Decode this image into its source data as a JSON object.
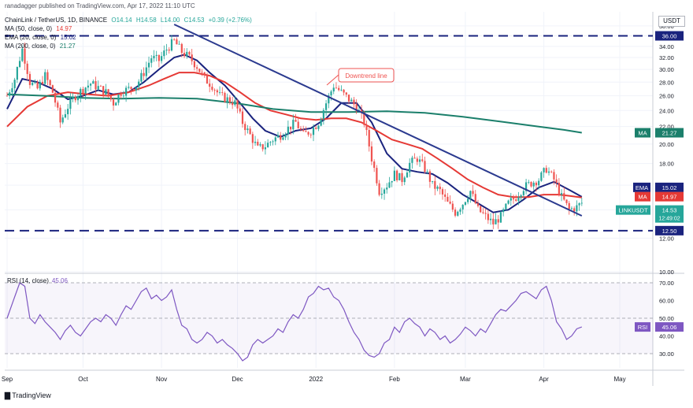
{
  "header": {
    "publisher": "ranadagger published on TradingView.com, Apr 17, 2022 11:10 UTC",
    "symbol": "ChainLink / TetherUS, 1D, BINANCE",
    "open": "O14.14",
    "high": "H14.58",
    "low": "L14.00",
    "close": "C14.53",
    "change": "+0.39 (+2.76%)",
    "currency": "USDT",
    "indicators": [
      {
        "label": "MA (50, close, 0)",
        "value": "14.97",
        "color": "#e53935"
      },
      {
        "label": "EMA (20, close, 0)",
        "value": "15.02",
        "color": "#1a237e"
      },
      {
        "label": "MA (200, close, 0)",
        "value": "21.27",
        "color": "#1b7f6b"
      }
    ]
  },
  "footer": {
    "brand": "TradingView"
  },
  "annotation": {
    "text": "Downtrend line"
  },
  "colors": {
    "up": "#26a69a",
    "down": "#ef5350",
    "ema20": "#1a237e",
    "ma50": "#e53935",
    "ma200": "#1b7f6b",
    "rsi": "#7e57c2",
    "levels": "#1a237e",
    "trend": "#2b3a8f"
  },
  "chart_data": {
    "type": "candlestick",
    "price_axis": {
      "ylim": [
        10,
        39.3
      ],
      "ticks": [
        "38.00",
        "36.00",
        "34.00",
        "32.00",
        "30.00",
        "28.00",
        "26.00",
        "24.00",
        "22.00",
        "20.00",
        "18.00",
        "16.00",
        "14.00",
        "12.00",
        "10.00"
      ],
      "tick_values": [
        38,
        36,
        34,
        32,
        30,
        28,
        26,
        24,
        22,
        20,
        18,
        16,
        14,
        12,
        10
      ],
      "scale": "log"
    },
    "horizontal_levels": [
      {
        "value": 36.0,
        "label": "36.00"
      },
      {
        "value": 12.5,
        "label": "12.50"
      }
    ],
    "trendline": {
      "from": {
        "day": 66,
        "price": 38.3
      },
      "to": {
        "day": 227,
        "price": 13.55
      },
      "label": "Downtrend line"
    },
    "price_labels": [
      {
        "label": "MA",
        "value": 21.27,
        "text": "21.27"
      },
      {
        "label": "EMA",
        "value": 15.02,
        "text": "15.02"
      },
      {
        "label": "MA",
        "value": 14.97,
        "text": "14.97"
      },
      {
        "label": "LINKUSDT",
        "value": 14.53,
        "text": "14.53",
        "countdown": "12:49:02"
      }
    ],
    "x_axis": {
      "ticks": [
        {
          "label": "Sep",
          "day": 0
        },
        {
          "label": "Oct",
          "day": 30
        },
        {
          "label": "Nov",
          "day": 61
        },
        {
          "label": "Dec",
          "day": 91
        },
        {
          "label": "2022",
          "day": 122
        },
        {
          "label": "Feb",
          "day": 153
        },
        {
          "label": "Mar",
          "day": 181
        },
        {
          "label": "Apr",
          "day": 212
        },
        {
          "label": "May",
          "day": 242
        }
      ],
      "first_day": "2021-09-01",
      "last_day": "2022-04-17"
    },
    "close_anchors": [
      [
        0,
        26.0
      ],
      [
        3,
        28.5
      ],
      [
        6,
        33.5
      ],
      [
        9,
        28.0
      ],
      [
        12,
        27.0
      ],
      [
        15,
        29.0
      ],
      [
        18,
        26.5
      ],
      [
        21,
        22.5
      ],
      [
        24,
        24.5
      ],
      [
        27,
        26.0
      ],
      [
        30,
        27.0
      ],
      [
        33,
        27.8
      ],
      [
        36,
        27.2
      ],
      [
        39,
        26.5
      ],
      [
        42,
        25.0
      ],
      [
        45,
        26.5
      ],
      [
        48,
        27.0
      ],
      [
        51,
        27.5
      ],
      [
        54,
        29.5
      ],
      [
        57,
        32.0
      ],
      [
        60,
        31.5
      ],
      [
        63,
        33.5
      ],
      [
        66,
        35.0
      ],
      [
        69,
        33.0
      ],
      [
        72,
        32.0
      ],
      [
        75,
        30.5
      ],
      [
        78,
        28.5
      ],
      [
        81,
        27.5
      ],
      [
        84,
        26.0
      ],
      [
        87,
        25.5
      ],
      [
        90,
        25.0
      ],
      [
        93,
        22.5
      ],
      [
        96,
        21.0
      ],
      [
        99,
        19.5
      ],
      [
        102,
        19.8
      ],
      [
        105,
        20.5
      ],
      [
        108,
        21.0
      ],
      [
        111,
        21.8
      ],
      [
        114,
        22.5
      ],
      [
        117,
        21.0
      ],
      [
        120,
        21.5
      ],
      [
        123,
        22.5
      ],
      [
        126,
        25.0
      ],
      [
        129,
        27.5
      ],
      [
        132,
        26.5
      ],
      [
        135,
        25.5
      ],
      [
        138,
        24.5
      ],
      [
        141,
        22.5
      ],
      [
        144,
        18.5
      ],
      [
        147,
        15.5
      ],
      [
        150,
        16.0
      ],
      [
        153,
        17.0
      ],
      [
        156,
        16.5
      ],
      [
        159,
        18.0
      ],
      [
        162,
        18.5
      ],
      [
        165,
        17.5
      ],
      [
        168,
        16.0
      ],
      [
        171,
        15.5
      ],
      [
        174,
        14.5
      ],
      [
        177,
        13.8
      ],
      [
        180,
        14.5
      ],
      [
        183,
        15.5
      ],
      [
        186,
        14.0
      ],
      [
        189,
        13.5
      ],
      [
        192,
        13.0
      ],
      [
        195,
        13.5
      ],
      [
        198,
        14.5
      ],
      [
        201,
        15.0
      ],
      [
        204,
        15.8
      ],
      [
        207,
        16.2
      ],
      [
        210,
        16.5
      ],
      [
        213,
        17.5
      ],
      [
        216,
        16.5
      ],
      [
        219,
        15.0
      ],
      [
        222,
        14.0
      ],
      [
        225,
        14.2
      ],
      [
        227,
        14.53
      ]
    ],
    "moving_averages": [
      {
        "name": "EMA 20",
        "color": "#1a237e",
        "points": [
          [
            0,
            24.2
          ],
          [
            6,
            28.5
          ],
          [
            12,
            28.0
          ],
          [
            18,
            27.0
          ],
          [
            24,
            25.5
          ],
          [
            30,
            26.0
          ],
          [
            36,
            26.8
          ],
          [
            42,
            26.2
          ],
          [
            48,
            26.5
          ],
          [
            54,
            28.0
          ],
          [
            60,
            30.0
          ],
          [
            66,
            32.0
          ],
          [
            70,
            32.5
          ],
          [
            75,
            31.5
          ],
          [
            80,
            29.5
          ],
          [
            86,
            27.5
          ],
          [
            92,
            25.0
          ],
          [
            97,
            23.0
          ],
          [
            102,
            21.5
          ],
          [
            108,
            20.8
          ],
          [
            114,
            21.5
          ],
          [
            120,
            21.8
          ],
          [
            126,
            23.0
          ],
          [
            132,
            25.0
          ],
          [
            138,
            25.0
          ],
          [
            144,
            22.5
          ],
          [
            150,
            19.0
          ],
          [
            156,
            17.5
          ],
          [
            162,
            17.2
          ],
          [
            168,
            17.0
          ],
          [
            174,
            16.2
          ],
          [
            180,
            15.2
          ],
          [
            186,
            14.5
          ],
          [
            192,
            13.8
          ],
          [
            198,
            14.0
          ],
          [
            204,
            14.8
          ],
          [
            210,
            15.8
          ],
          [
            216,
            16.3
          ],
          [
            222,
            15.6
          ],
          [
            227,
            15.02
          ]
        ]
      },
      {
        "name": "MA 50",
        "color": "#e53935",
        "points": [
          [
            0,
            22.0
          ],
          [
            8,
            24.5
          ],
          [
            16,
            26.0
          ],
          [
            24,
            26.5
          ],
          [
            32,
            26.2
          ],
          [
            40,
            26.0
          ],
          [
            48,
            26.5
          ],
          [
            56,
            27.5
          ],
          [
            62,
            28.5
          ],
          [
            68,
            29.5
          ],
          [
            74,
            29.5
          ],
          [
            80,
            29.0
          ],
          [
            86,
            28.0
          ],
          [
            92,
            26.5
          ],
          [
            98,
            25.0
          ],
          [
            104,
            24.0
          ],
          [
            110,
            23.5
          ],
          [
            116,
            23.0
          ],
          [
            122,
            22.8
          ],
          [
            128,
            23.0
          ],
          [
            134,
            23.0
          ],
          [
            140,
            22.5
          ],
          [
            146,
            21.5
          ],
          [
            152,
            20.5
          ],
          [
            158,
            20.0
          ],
          [
            164,
            19.5
          ],
          [
            170,
            18.5
          ],
          [
            176,
            17.5
          ],
          [
            182,
            16.5
          ],
          [
            188,
            15.8
          ],
          [
            194,
            15.2
          ],
          [
            200,
            15.0
          ],
          [
            206,
            15.0
          ],
          [
            212,
            15.2
          ],
          [
            218,
            15.2
          ],
          [
            222,
            15.1
          ],
          [
            227,
            14.97
          ]
        ]
      },
      {
        "name": "MA 200",
        "color": "#1b7f6b",
        "points": [
          [
            0,
            26.2
          ],
          [
            15,
            26.0
          ],
          [
            30,
            25.7
          ],
          [
            45,
            25.6
          ],
          [
            60,
            25.7
          ],
          [
            75,
            25.6
          ],
          [
            90,
            25.0
          ],
          [
            105,
            24.2
          ],
          [
            120,
            23.8
          ],
          [
            135,
            23.8
          ],
          [
            150,
            23.9
          ],
          [
            165,
            23.7
          ],
          [
            180,
            23.2
          ],
          [
            195,
            22.6
          ],
          [
            210,
            22.0
          ],
          [
            220,
            21.6
          ],
          [
            227,
            21.27
          ]
        ]
      }
    ],
    "rsi": {
      "label": "RSI (14, close)",
      "value": 45.06,
      "value_text": "45.06",
      "ylim": [
        22,
        74
      ],
      "ticks": [
        "70.00",
        "60.00",
        "50.00",
        "40.00",
        "30.00"
      ],
      "tick_values": [
        70,
        60,
        50,
        40,
        30
      ],
      "bands": [
        70,
        50,
        30
      ],
      "points": [
        [
          0,
          50
        ],
        [
          3,
          62
        ],
        [
          5,
          70
        ],
        [
          7,
          68
        ],
        [
          9,
          50
        ],
        [
          11,
          47
        ],
        [
          13,
          52
        ],
        [
          15,
          48
        ],
        [
          17,
          45
        ],
        [
          19,
          42
        ],
        [
          21,
          38
        ],
        [
          23,
          43
        ],
        [
          25,
          46
        ],
        [
          27,
          42
        ],
        [
          29,
          40
        ],
        [
          31,
          44
        ],
        [
          33,
          48
        ],
        [
          35,
          50
        ],
        [
          37,
          48
        ],
        [
          39,
          52
        ],
        [
          41,
          50
        ],
        [
          43,
          46
        ],
        [
          45,
          52
        ],
        [
          47,
          57
        ],
        [
          49,
          55
        ],
        [
          51,
          60
        ],
        [
          53,
          65
        ],
        [
          55,
          67
        ],
        [
          57,
          61
        ],
        [
          59,
          63
        ],
        [
          61,
          60
        ],
        [
          63,
          62
        ],
        [
          65,
          66
        ],
        [
          67,
          55
        ],
        [
          69,
          46
        ],
        [
          71,
          44
        ],
        [
          73,
          38
        ],
        [
          75,
          36
        ],
        [
          77,
          38
        ],
        [
          79,
          42
        ],
        [
          81,
          40
        ],
        [
          83,
          36
        ],
        [
          85,
          38
        ],
        [
          87,
          35
        ],
        [
          89,
          33
        ],
        [
          91,
          30
        ],
        [
          93,
          26
        ],
        [
          95,
          28
        ],
        [
          97,
          35
        ],
        [
          99,
          38
        ],
        [
          101,
          36
        ],
        [
          103,
          38
        ],
        [
          105,
          40
        ],
        [
          107,
          44
        ],
        [
          109,
          42
        ],
        [
          111,
          48
        ],
        [
          113,
          52
        ],
        [
          115,
          50
        ],
        [
          117,
          55
        ],
        [
          119,
          62
        ],
        [
          121,
          64
        ],
        [
          123,
          68
        ],
        [
          125,
          66
        ],
        [
          127,
          67
        ],
        [
          129,
          62
        ],
        [
          131,
          60
        ],
        [
          133,
          55
        ],
        [
          135,
          48
        ],
        [
          137,
          42
        ],
        [
          139,
          38
        ],
        [
          141,
          32
        ],
        [
          143,
          29
        ],
        [
          145,
          28
        ],
        [
          147,
          30
        ],
        [
          149,
          36
        ],
        [
          151,
          38
        ],
        [
          153,
          45
        ],
        [
          155,
          42
        ],
        [
          157,
          48
        ],
        [
          159,
          50
        ],
        [
          161,
          47
        ],
        [
          163,
          45
        ],
        [
          165,
          40
        ],
        [
          167,
          44
        ],
        [
          169,
          42
        ],
        [
          171,
          38
        ],
        [
          173,
          40
        ],
        [
          175,
          36
        ],
        [
          177,
          38
        ],
        [
          179,
          41
        ],
        [
          181,
          45
        ],
        [
          183,
          43
        ],
        [
          185,
          40
        ],
        [
          187,
          44
        ],
        [
          189,
          42
        ],
        [
          191,
          47
        ],
        [
          193,
          52
        ],
        [
          195,
          55
        ],
        [
          197,
          54
        ],
        [
          199,
          57
        ],
        [
          201,
          60
        ],
        [
          203,
          64
        ],
        [
          205,
          65
        ],
        [
          207,
          63
        ],
        [
          209,
          61
        ],
        [
          211,
          66
        ],
        [
          213,
          68
        ],
        [
          215,
          60
        ],
        [
          217,
          48
        ],
        [
          219,
          44
        ],
        [
          221,
          38
        ],
        [
          223,
          40
        ],
        [
          225,
          44
        ],
        [
          227,
          45.06
        ]
      ]
    }
  }
}
